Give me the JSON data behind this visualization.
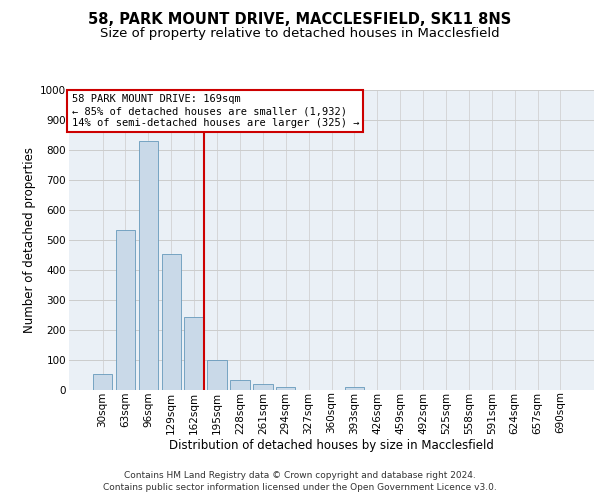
{
  "title_line1": "58, PARK MOUNT DRIVE, MACCLESFIELD, SK11 8NS",
  "title_line2": "Size of property relative to detached houses in Macclesfield",
  "xlabel": "Distribution of detached houses by size in Macclesfield",
  "ylabel": "Number of detached properties",
  "categories": [
    "30sqm",
    "63sqm",
    "96sqm",
    "129sqm",
    "162sqm",
    "195sqm",
    "228sqm",
    "261sqm",
    "294sqm",
    "327sqm",
    "360sqm",
    "393sqm",
    "426sqm",
    "459sqm",
    "492sqm",
    "525sqm",
    "558sqm",
    "591sqm",
    "624sqm",
    "657sqm",
    "690sqm"
  ],
  "values": [
    55,
    535,
    830,
    455,
    245,
    100,
    35,
    20,
    10,
    0,
    0,
    10,
    0,
    0,
    0,
    0,
    0,
    0,
    0,
    0,
    0
  ],
  "bar_color": "#c9d9e8",
  "bar_edge_color": "#6699bb",
  "grid_color": "#cccccc",
  "background_color": "#eaf0f6",
  "vline_color": "#cc0000",
  "vline_bar_index": 4,
  "annotation_text": "58 PARK MOUNT DRIVE: 169sqm\n← 85% of detached houses are smaller (1,932)\n14% of semi-detached houses are larger (325) →",
  "annotation_box_color": "#ffffff",
  "annotation_box_edge_color": "#cc0000",
  "ylim": [
    0,
    1000
  ],
  "yticks": [
    0,
    100,
    200,
    300,
    400,
    500,
    600,
    700,
    800,
    900,
    1000
  ],
  "footnote_line1": "Contains HM Land Registry data © Crown copyright and database right 2024.",
  "footnote_line2": "Contains public sector information licensed under the Open Government Licence v3.0.",
  "title_fontsize": 10.5,
  "subtitle_fontsize": 9.5,
  "tick_fontsize": 7.5,
  "label_fontsize": 8.5,
  "annotation_fontsize": 7.5,
  "footnote_fontsize": 6.5
}
